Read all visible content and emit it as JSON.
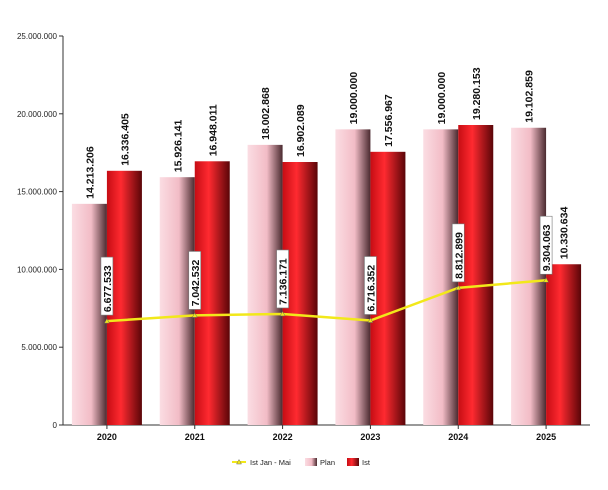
{
  "chart_data": {
    "type": "bar",
    "categories": [
      "2020",
      "2021",
      "2022",
      "2023",
      "2024",
      "2025"
    ],
    "series": [
      {
        "name": "Plan",
        "type": "bar",
        "values": [
          14213206,
          15926141,
          18002868,
          19000000,
          19000000,
          19102859
        ],
        "labels": [
          "14.213.206",
          "15.926.141",
          "18.002.868",
          "19.000.000",
          "19.000.000",
          "19.102.859"
        ],
        "color": "#f4c2cc"
      },
      {
        "name": "Ist",
        "type": "bar",
        "values": [
          16336405,
          16948011,
          16902089,
          17556967,
          19280153,
          10330634
        ],
        "labels": [
          "16.336.405",
          "16.948.011",
          "16.902.089",
          "17.556.967",
          "19.280.153",
          "10.330.634"
        ],
        "color": "#e8141b"
      },
      {
        "name": "Ist Jan - Mai",
        "type": "line",
        "values": [
          6677533,
          7042532,
          7136171,
          6716352,
          8812899,
          9304063
        ],
        "labels": [
          "6.677.533",
          "7.042.532",
          "7.136.171",
          "6.716.352",
          "8.812.899",
          "9.304.063"
        ],
        "color": "#f2e81a"
      }
    ],
    "ylim": [
      0,
      25000000
    ],
    "yticks": [
      0,
      5000000,
      10000000,
      15000000,
      20000000,
      25000000
    ],
    "ytick_labels": [
      "0",
      "5.000.000",
      "10.000.000",
      "15.000.000",
      "20.000.000",
      "25.000.000"
    ],
    "grid": false,
    "legend_position": "bottom"
  }
}
